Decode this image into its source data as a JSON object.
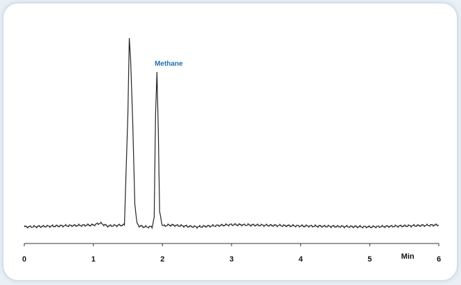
{
  "chart_data": {
    "type": "line",
    "x_unit_label": "Min",
    "xlim": [
      0,
      6
    ],
    "x_ticks": [
      0,
      1,
      2,
      3,
      4,
      5,
      6
    ],
    "grid": false,
    "colors": {
      "trace": "#222222",
      "annotation": "#1f6fb4",
      "axis": "#333333"
    },
    "annotations": [
      {
        "text": "Methane",
        "x": 1.93
      }
    ],
    "series": [
      {
        "x": [
          0,
          1.0,
          1.1,
          1.2,
          1.45,
          1.5,
          1.52,
          1.54,
          1.57,
          1.6,
          1.63,
          1.66,
          1.75,
          1.85,
          1.88,
          1.9,
          1.92,
          1.94,
          1.96,
          2.0,
          2.1,
          2.5,
          3.0,
          4.0,
          5.0,
          6.0
        ],
        "y": [
          0,
          0.01,
          0.02,
          0.005,
          0.01,
          0.6,
          1.0,
          0.88,
          0.55,
          0.12,
          0.02,
          0.005,
          0.0,
          0.0,
          0.05,
          0.6,
          0.82,
          0.5,
          0.08,
          0.005,
          0.01,
          0.0,
          0.012,
          0.005,
          0.0,
          0.01
        ]
      }
    ]
  }
}
